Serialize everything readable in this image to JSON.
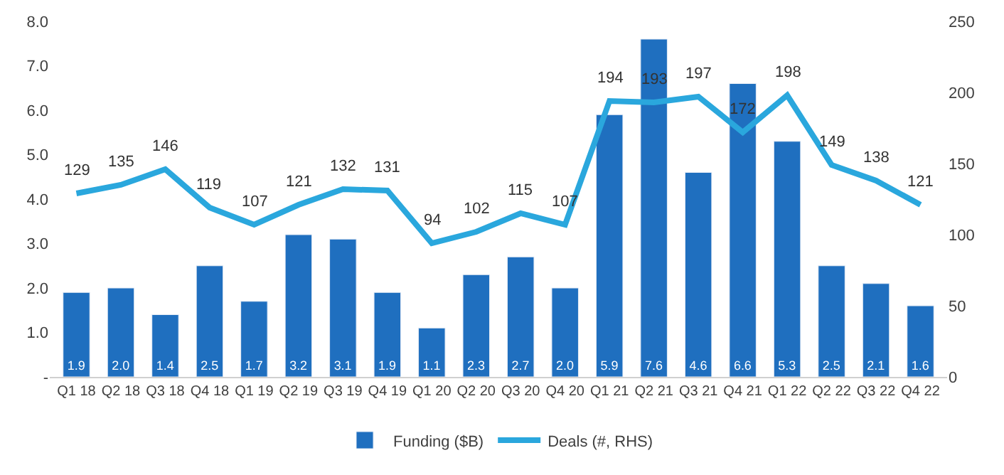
{
  "chart_data": {
    "type": "bar",
    "categories": [
      "Q1 18",
      "Q2 18",
      "Q3 18",
      "Q4 18",
      "Q1 19",
      "Q2 19",
      "Q3 19",
      "Q4 19",
      "Q1 20",
      "Q2 20",
      "Q3 20",
      "Q4 20",
      "Q1 21",
      "Q2 21",
      "Q3 21",
      "Q4 21",
      "Q1 22",
      "Q2 22",
      "Q3 22",
      "Q4 22"
    ],
    "series": [
      {
        "name": "Funding ($B)",
        "color": "#1f6fbf",
        "values": [
          1.9,
          2.0,
          1.4,
          2.5,
          1.7,
          3.2,
          3.1,
          1.9,
          1.1,
          2.3,
          2.7,
          2.0,
          5.9,
          7.6,
          4.6,
          6.6,
          5.3,
          2.5,
          2.1,
          1.6
        ],
        "value_labels": [
          "1.9",
          "2.0",
          "1.4",
          "2.5",
          "1.7",
          "3.2",
          "3.1",
          "1.9",
          "1.1",
          "2.3",
          "2.7",
          "2.0",
          "5.9",
          "7.6",
          "4.6",
          "6.6",
          "5.3",
          "2.5",
          "2.1",
          "1.6"
        ]
      },
      {
        "name": "Deals (#, RHS)",
        "type": "line",
        "axis": "y2",
        "color": "#2aa7dd",
        "values": [
          129,
          135,
          146,
          119,
          107,
          121,
          132,
          131,
          94,
          102,
          115,
          107,
          194,
          193,
          197,
          172,
          198,
          149,
          138,
          121
        ]
      }
    ],
    "data_labels": true,
    "ylim": [
      0,
      8
    ],
    "yticks": [
      {
        "value": 0,
        "label": "-"
      },
      {
        "value": 1,
        "label": "1.0"
      },
      {
        "value": 2,
        "label": "2.0"
      },
      {
        "value": 3,
        "label": "3.0"
      },
      {
        "value": 4,
        "label": "4.0"
      },
      {
        "value": 5,
        "label": "5.0"
      },
      {
        "value": 6,
        "label": "6.0"
      },
      {
        "value": 7,
        "label": "7.0"
      },
      {
        "value": 8,
        "label": "8.0"
      }
    ],
    "y2lim": [
      0,
      250
    ],
    "y2ticks": [
      0,
      50,
      100,
      150,
      200,
      250
    ],
    "legend": "bottom",
    "marker": "none",
    "line_style": "solid"
  }
}
